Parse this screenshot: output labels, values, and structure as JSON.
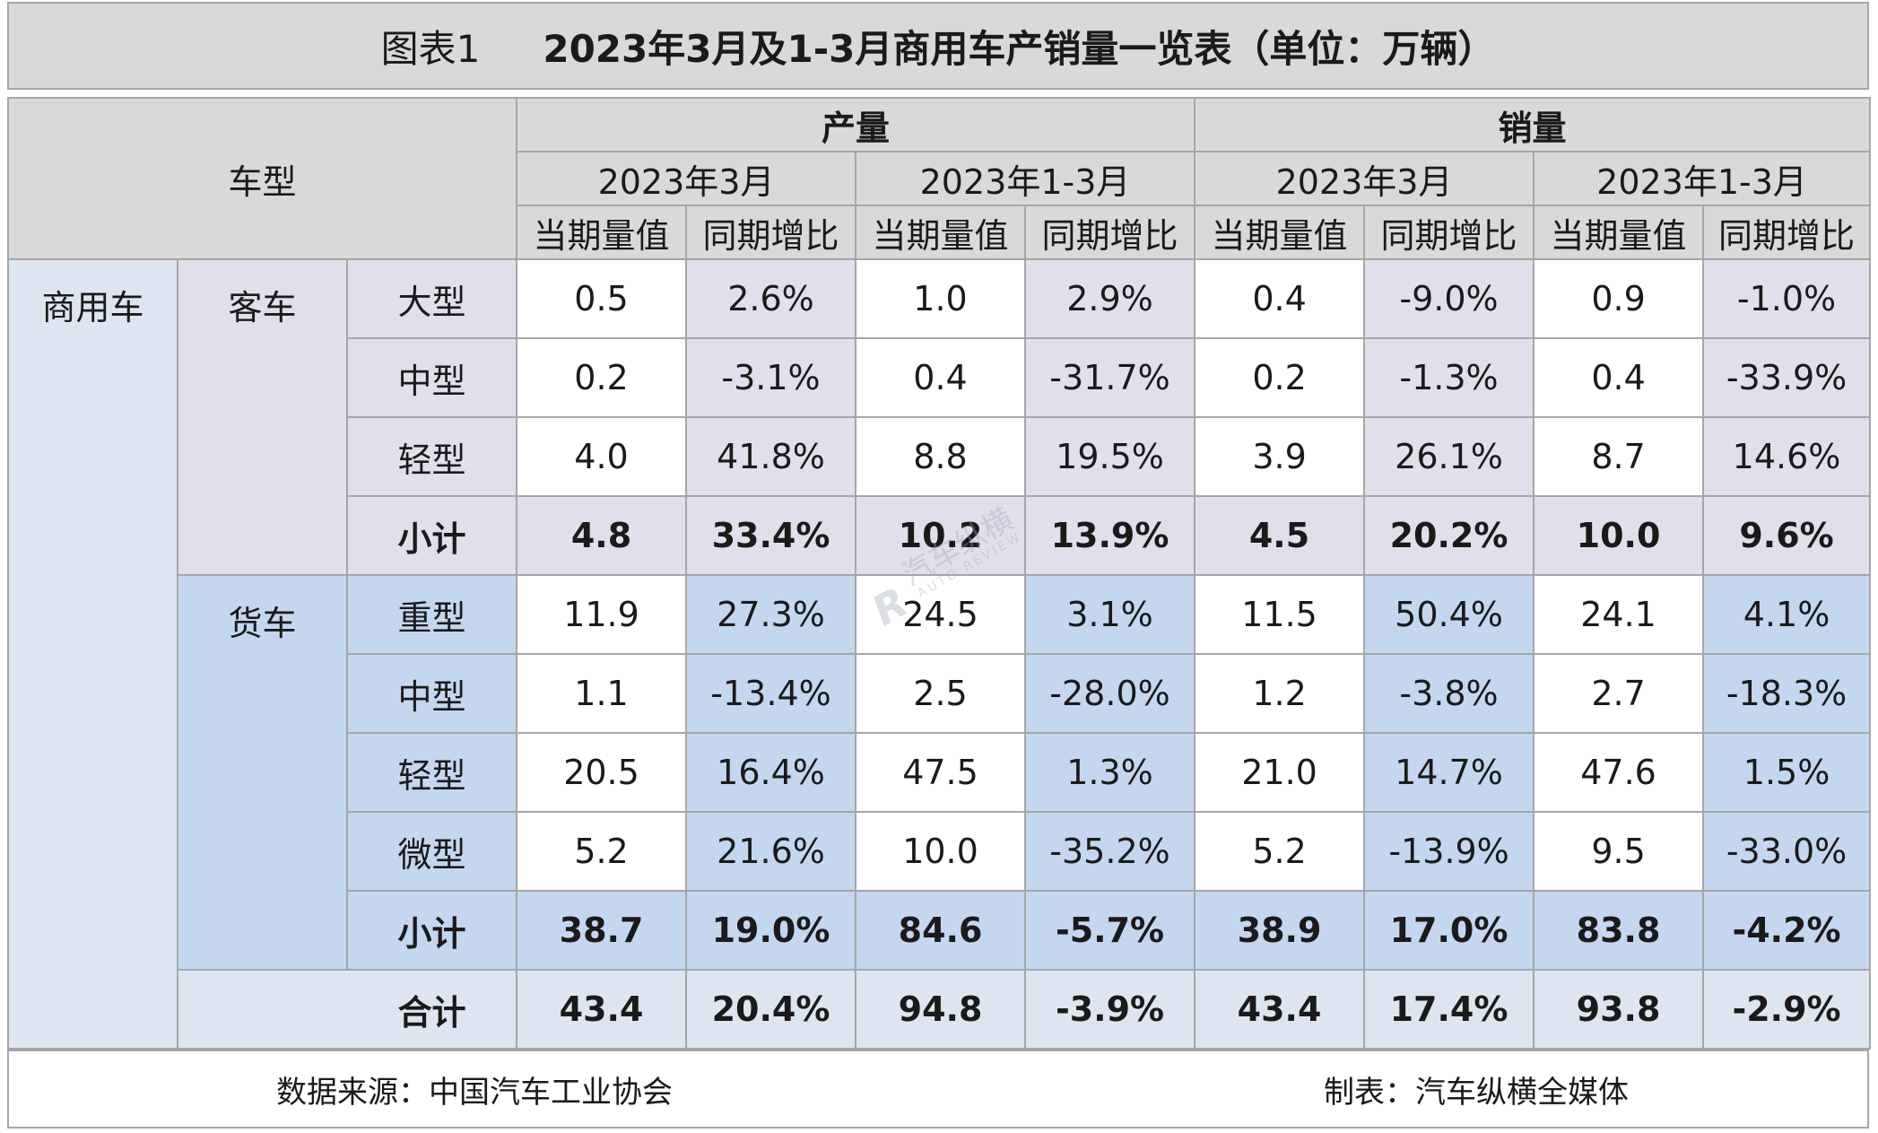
{
  "title": {
    "prefix": "图表1",
    "main": "2023年3月及1-3月商用车产销量一览表（单位：万辆）"
  },
  "header": {
    "model_label": "车型",
    "production": "产量",
    "sales": "销量",
    "periods": [
      "2023年3月",
      "2023年1-3月",
      "2023年3月",
      "2023年1-3月"
    ],
    "metrics": [
      "当期量值",
      "同期增比",
      "当期量值",
      "同期增比",
      "当期量值",
      "同期增比",
      "当期量值",
      "同期增比"
    ]
  },
  "category": "商用车",
  "groups": {
    "bus": {
      "label": "客车",
      "rows": [
        {
          "type": "大型",
          "values": [
            "0.5",
            "2.6%",
            "1.0",
            "2.9%",
            "0.4",
            "-9.0%",
            "0.9",
            "-1.0%"
          ]
        },
        {
          "type": "中型",
          "values": [
            "0.2",
            "-3.1%",
            "0.4",
            "-31.7%",
            "0.2",
            "-1.3%",
            "0.4",
            "-33.9%"
          ]
        },
        {
          "type": "轻型",
          "values": [
            "4.0",
            "41.8%",
            "8.8",
            "19.5%",
            "3.9",
            "26.1%",
            "8.7",
            "14.6%"
          ]
        }
      ],
      "subtotal": {
        "label": "小计",
        "values": [
          "4.8",
          "33.4%",
          "10.2",
          "13.9%",
          "4.5",
          "20.2%",
          "10.0",
          "9.6%"
        ]
      }
    },
    "truck": {
      "label": "货车",
      "rows": [
        {
          "type": "重型",
          "values": [
            "11.9",
            "27.3%",
            "24.5",
            "3.1%",
            "11.5",
            "50.4%",
            "24.1",
            "4.1%"
          ]
        },
        {
          "type": "中型",
          "values": [
            "1.1",
            "-13.4%",
            "2.5",
            "-28.0%",
            "1.2",
            "-3.8%",
            "2.7",
            "-18.3%"
          ]
        },
        {
          "type": "轻型",
          "values": [
            "20.5",
            "16.4%",
            "47.5",
            "1.3%",
            "21.0",
            "14.7%",
            "47.6",
            "1.5%"
          ]
        },
        {
          "type": "微型",
          "values": [
            "5.2",
            "21.6%",
            "10.0",
            "-35.2%",
            "5.2",
            "-13.9%",
            "9.5",
            "-33.0%"
          ]
        }
      ],
      "subtotal": {
        "label": "小计",
        "values": [
          "38.7",
          "19.0%",
          "84.6",
          "-5.7%",
          "38.9",
          "17.0%",
          "83.8",
          "-4.2%"
        ]
      }
    }
  },
  "total": {
    "label": "合计",
    "values": [
      "43.4",
      "20.4%",
      "94.8",
      "-3.9%",
      "43.4",
      "17.4%",
      "93.8",
      "-2.9%"
    ]
  },
  "footer": {
    "source": "数据来源：中国汽车工业协会",
    "maker": "制表：汽车纵横全媒体"
  },
  "watermark": {
    "logo": "R",
    "text": "汽车纵横",
    "sub": "AUTO REVIEW"
  },
  "colors": {
    "header_bg": "#d9d9d9",
    "category_bg": "#dde6f0",
    "bus_bg": "#e1dfec",
    "truck_bg": "#c5d7ee",
    "border": "#a6a6a6"
  }
}
